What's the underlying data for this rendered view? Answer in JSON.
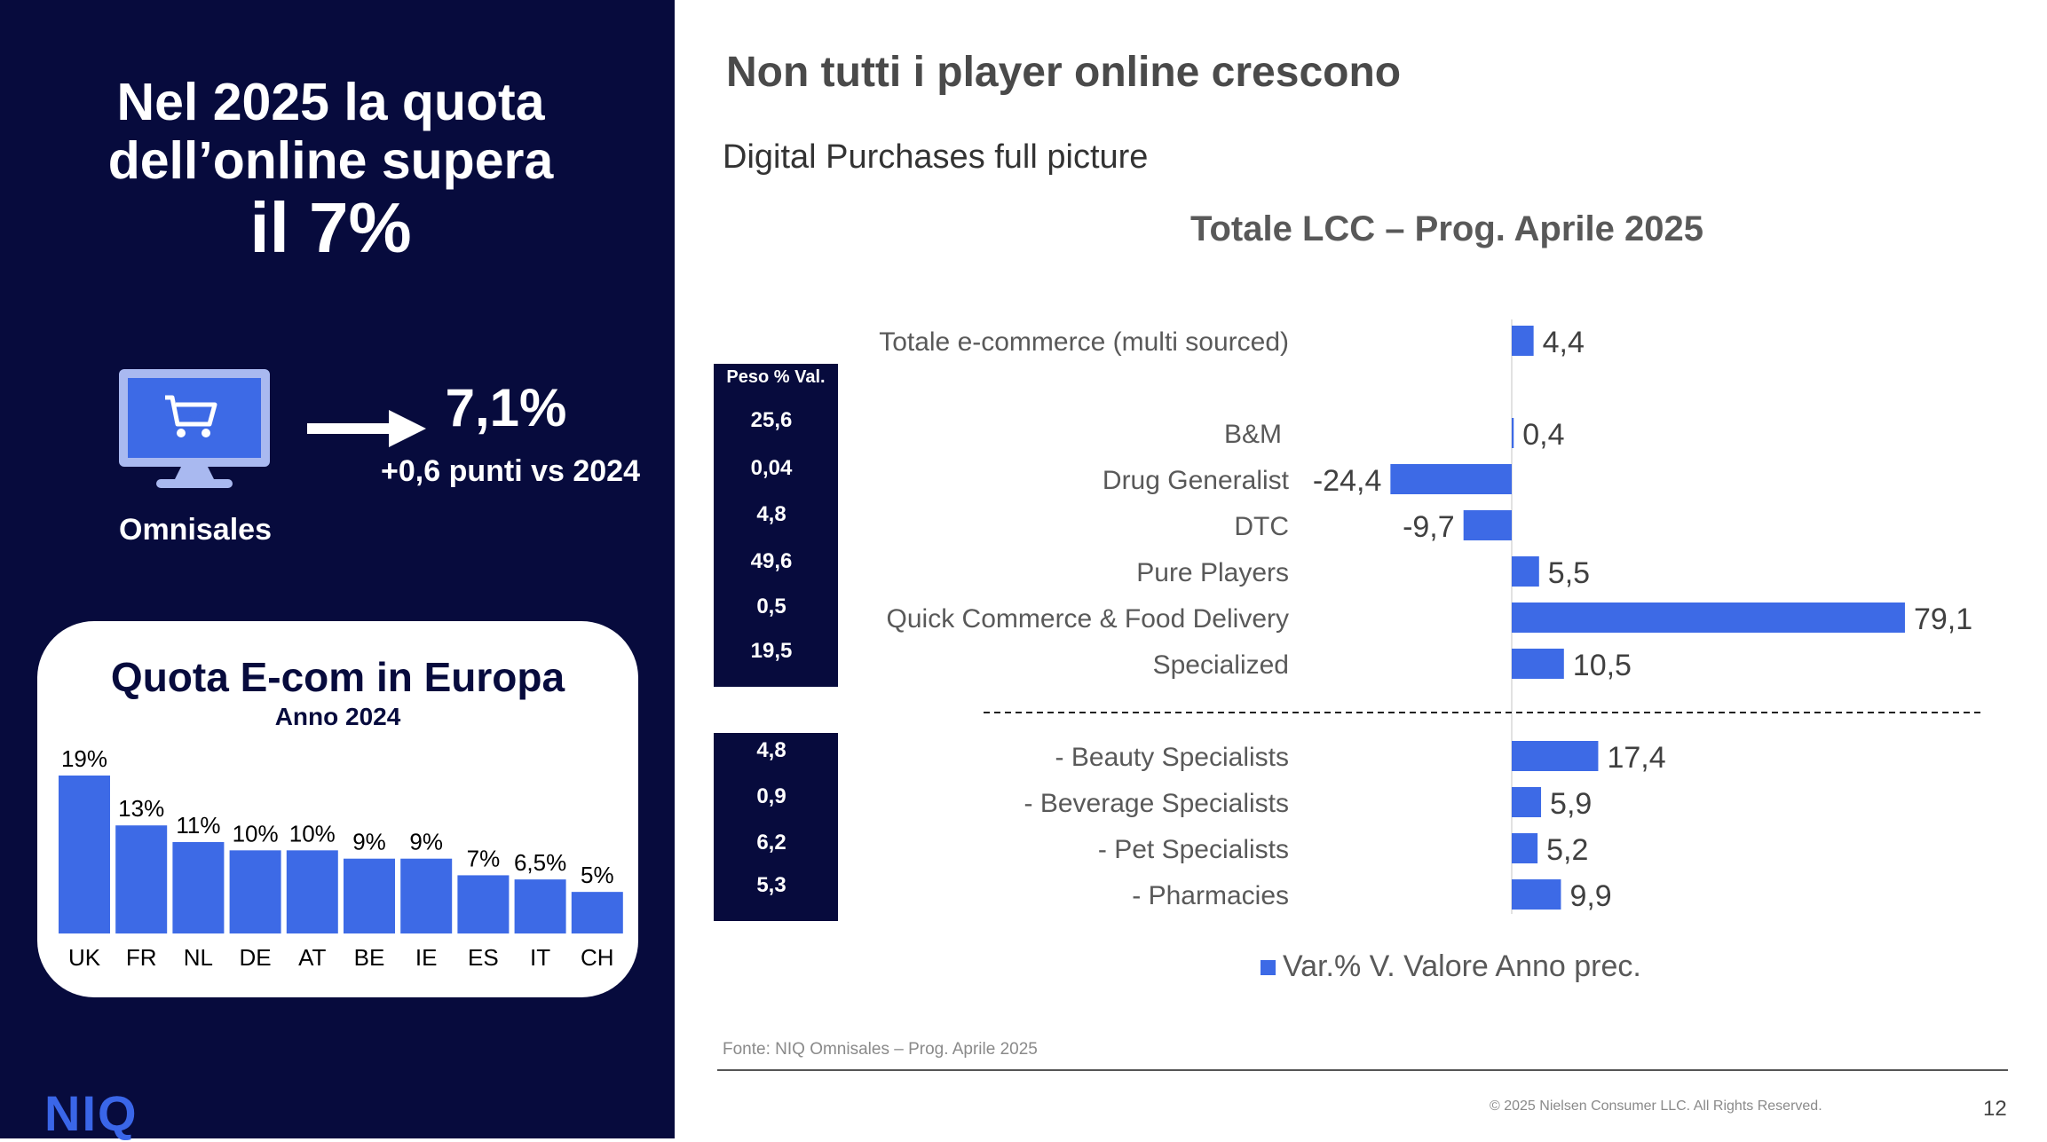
{
  "left_panel": {
    "headline_line1": "Nel 2025 la quota",
    "headline_line2": "dell’online supera",
    "headline_line3": "il 7%",
    "big_value": "7,1%",
    "delta_text": "+0,6 punti vs 2024",
    "icon_label": "Omnisales",
    "icon": "computer-cart-icon",
    "logo": "NIQ",
    "bg_color": "#070b3d"
  },
  "europe_card": {
    "title": "Quota E-com in Europa",
    "subtitle": "Anno 2024"
  },
  "header": {
    "title": "Non tutti i player online crescono",
    "subtitle": "Digital Purchases full picture"
  },
  "peso": {
    "header": "Peso % Val.",
    "values_top": [
      "25,6",
      "0,04",
      "4,8",
      "49,6",
      "0,5",
      "19,5"
    ],
    "values_bottom": [
      "4,8",
      "0,9",
      "6,2",
      "5,3"
    ]
  },
  "footer": {
    "source": "Fonte: NIQ Omnisales – Prog. Aprile 2025",
    "copyright": "© 2025 Nielsen Consumer LLC. All Rights Reserved.",
    "page_number": "12"
  },
  "chart_data": [
    {
      "type": "bar",
      "title": "Quota E-com in Europa",
      "subtitle": "Anno 2024",
      "categories": [
        "UK",
        "FR",
        "NL",
        "DE",
        "AT",
        "BE",
        "IE",
        "ES",
        "IT",
        "CH"
      ],
      "values": [
        19,
        13,
        11,
        10,
        10,
        9,
        9,
        7,
        6.5,
        5
      ],
      "value_labels": [
        "19%",
        "13%",
        "11%",
        "10%",
        "10%",
        "9%",
        "9%",
        "7%",
        "6,5%",
        "5%"
      ],
      "ylim": [
        0,
        19
      ],
      "color": "#3d6ae6",
      "grid": false
    },
    {
      "type": "bar",
      "orientation": "horizontal",
      "title": "Totale LCC – Prog. Aprile 2025",
      "categories": [
        "Totale e-commerce (multi sourced)",
        "B&M",
        "Drug Generalist",
        "DTC",
        "Pure Players",
        "Quick Commerce & Food Delivery",
        "Specialized",
        "- Beauty Specialists",
        "- Beverage Specialists",
        "- Pet Specialists",
        "- Pharmacies"
      ],
      "values": [
        4.4,
        0.4,
        -24.4,
        -9.7,
        5.5,
        79.1,
        10.5,
        17.4,
        5.9,
        5.2,
        9.9
      ],
      "value_labels": [
        "4,4",
        "0,4",
        "-24,4",
        "-9,7",
        "5,5",
        "79,1",
        "10,5",
        "17,4",
        "5,9",
        "5,2",
        "9,9"
      ],
      "series": [
        {
          "name": "Var.% V. Valore Anno prec."
        }
      ],
      "legend": "bottom",
      "color": "#3d6ae6",
      "grid": false
    }
  ]
}
